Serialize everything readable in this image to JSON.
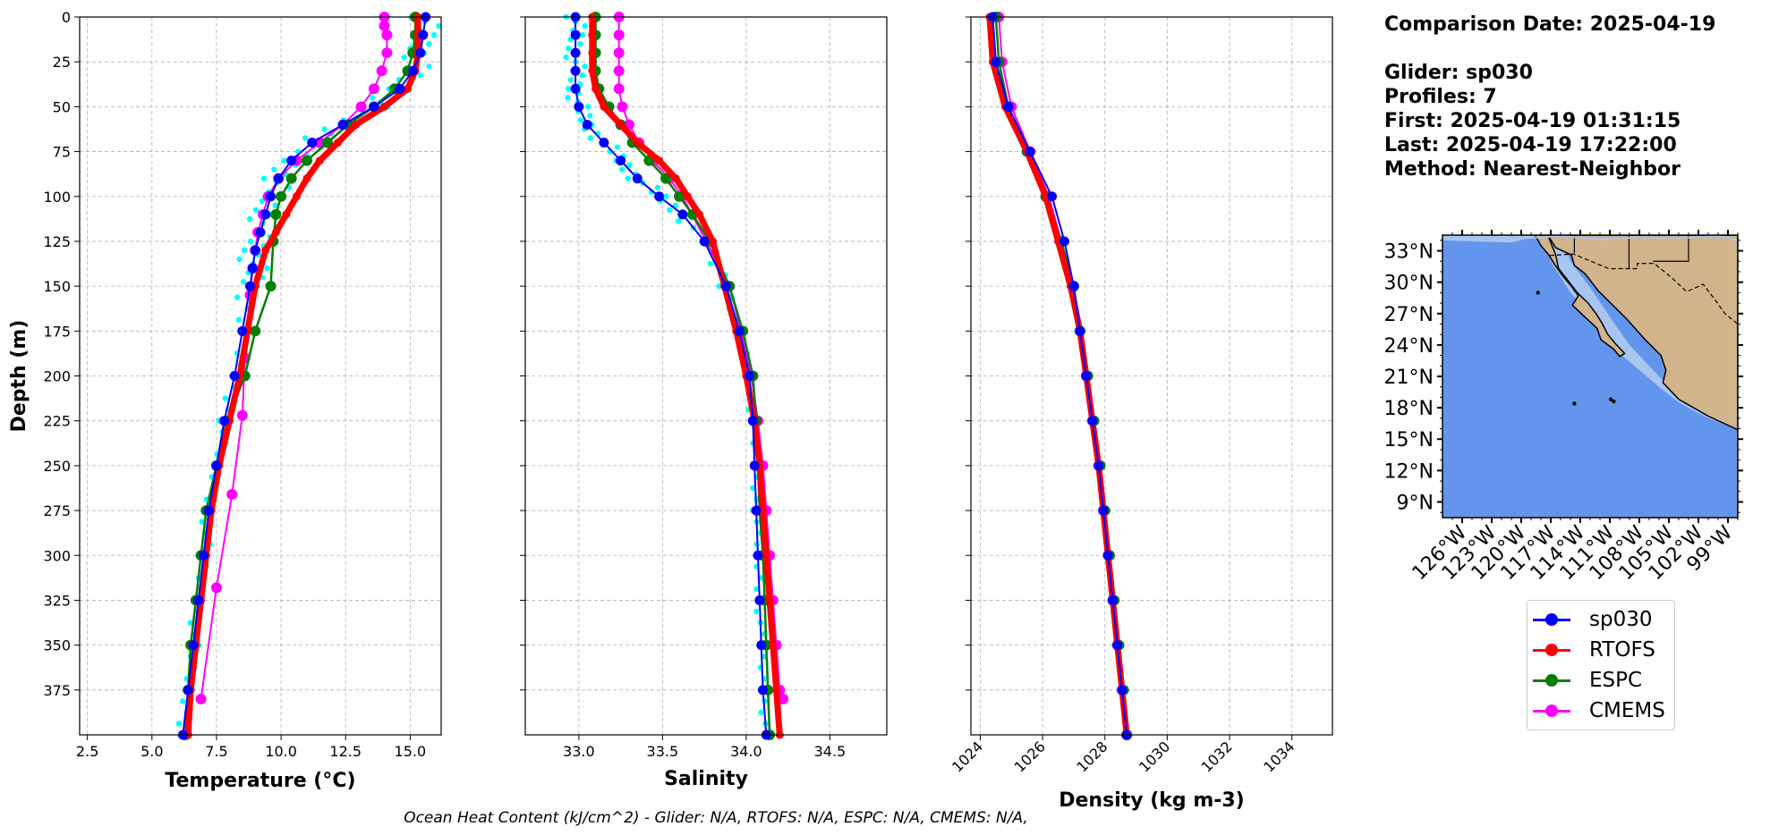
{
  "info": {
    "comparison_date": "Comparison Date: 2025-04-19",
    "glider": "Glider: sp030",
    "profiles": "Profiles: 7",
    "first": "First: 2025-04-19 01:31:15",
    "last": "Last: 2025-04-19 17:22:00",
    "method": "Method: Nearest-Neighbor"
  },
  "footer": "Ocean Heat Content (kJ/cm^2) - Glider: N/A,  RTOFS: N/A,  ESPC: N/A,  CMEMS: N/A,",
  "colors": {
    "sp030": "#0000ff",
    "RTOFS": "#ff0000",
    "ESPC": "#008000",
    "CMEMS": "#ff00ff",
    "raw": "#00ffff",
    "ocean": "#6495ed",
    "shelf": "#a6c6f0",
    "land": "#d2b48c"
  },
  "legend": [
    "sp030",
    "RTOFS",
    "ESPC",
    "CMEMS"
  ],
  "chart_data": [
    {
      "type": "line",
      "xlabel": "Temperature (°C)",
      "ylabel": "Depth (m)",
      "xlim": [
        2.2,
        16.2
      ],
      "ylim": [
        400,
        0
      ],
      "xticks": [
        "2.5",
        "5.0",
        "7.5",
        "10.0",
        "12.5",
        "15.0"
      ],
      "yticks": [
        "0",
        "25",
        "50",
        "75",
        "100",
        "125",
        "150",
        "175",
        "200",
        "225",
        "250",
        "275",
        "300",
        "325",
        "350",
        "375"
      ],
      "series": [
        {
          "name": "sp030",
          "depth": [
            0,
            10,
            20,
            30,
            40,
            50,
            60,
            70,
            80,
            90,
            100,
            110,
            120,
            130,
            140,
            150,
            175,
            200,
            225,
            250,
            275,
            300,
            325,
            350,
            375,
            400
          ],
          "values": [
            15.6,
            15.5,
            15.4,
            15.1,
            14.6,
            13.6,
            12.4,
            11.2,
            10.4,
            9.9,
            9.6,
            9.4,
            9.2,
            9.0,
            8.9,
            8.8,
            8.5,
            8.2,
            7.8,
            7.5,
            7.2,
            7.0,
            6.8,
            6.6,
            6.4,
            6.2
          ]
        },
        {
          "name": "RTOFS",
          "depth": [
            0,
            10,
            20,
            30,
            40,
            50,
            60,
            70,
            80,
            90,
            100,
            110,
            120,
            130,
            150,
            175,
            200,
            225,
            250,
            275,
            300,
            325,
            350,
            375,
            400
          ],
          "values": [
            15.3,
            15.3,
            15.3,
            15.2,
            14.9,
            14.0,
            12.9,
            12.2,
            11.5,
            11.0,
            10.6,
            10.2,
            9.8,
            9.4,
            9.0,
            8.7,
            8.4,
            8.0,
            7.6,
            7.3,
            7.1,
            6.9,
            6.7,
            6.5,
            6.4
          ]
        },
        {
          "name": "ESPC",
          "depth": [
            0,
            10,
            20,
            30,
            40,
            50,
            60,
            70,
            80,
            90,
            100,
            110,
            125,
            150,
            175,
            200,
            225,
            250,
            275,
            300,
            325,
            350,
            375,
            400
          ],
          "values": [
            15.2,
            15.2,
            15.1,
            14.9,
            14.4,
            13.6,
            12.6,
            11.8,
            11.0,
            10.4,
            10.0,
            9.8,
            9.7,
            9.6,
            9.0,
            8.6,
            7.9,
            7.5,
            7.1,
            6.9,
            6.7,
            6.5,
            6.4,
            6.3
          ]
        },
        {
          "name": "CMEMS",
          "depth": [
            0,
            5,
            10,
            20,
            30,
            40,
            50,
            60,
            70,
            80,
            90,
            100,
            110,
            120,
            130,
            140,
            155,
            190,
            222,
            266,
            318,
            380
          ],
          "values": [
            14.0,
            14.0,
            14.1,
            14.1,
            13.9,
            13.6,
            13.1,
            12.4,
            11.5,
            10.6,
            9.9,
            9.5,
            9.3,
            9.1,
            9.0,
            8.9,
            8.8,
            8.6,
            8.5,
            8.1,
            7.5,
            6.9
          ]
        }
      ]
    },
    {
      "type": "line",
      "xlabel": "Salinity",
      "ylim": [
        400,
        0
      ],
      "xlim": [
        32.68,
        34.84
      ],
      "xticks": [
        "33.0",
        "33.5",
        "34.0",
        "34.5"
      ],
      "series": [
        {
          "name": "sp030",
          "depth": [
            0,
            10,
            20,
            30,
            40,
            50,
            60,
            70,
            80,
            90,
            100,
            110,
            125,
            150,
            175,
            200,
            225,
            250,
            275,
            300,
            325,
            350,
            375,
            400
          ],
          "values": [
            32.98,
            32.98,
            32.98,
            32.98,
            32.98,
            33.0,
            33.05,
            33.15,
            33.25,
            33.35,
            33.48,
            33.62,
            33.75,
            33.88,
            33.96,
            34.02,
            34.04,
            34.05,
            34.06,
            34.07,
            34.08,
            34.09,
            34.1,
            34.12
          ]
        },
        {
          "name": "RTOFS",
          "depth": [
            0,
            10,
            20,
            30,
            40,
            50,
            60,
            70,
            80,
            90,
            100,
            110,
            125,
            150,
            175,
            200,
            225,
            250,
            275,
            300,
            325,
            350,
            375,
            400
          ],
          "values": [
            33.08,
            33.08,
            33.08,
            33.08,
            33.1,
            33.15,
            33.25,
            33.35,
            33.48,
            33.58,
            33.65,
            33.72,
            33.8,
            33.87,
            33.94,
            34.0,
            34.05,
            34.08,
            34.1,
            34.12,
            34.14,
            34.16,
            34.18,
            34.2
          ]
        },
        {
          "name": "ESPC",
          "depth": [
            0,
            10,
            20,
            30,
            40,
            50,
            60,
            70,
            80,
            90,
            100,
            110,
            125,
            150,
            175,
            200,
            225,
            250,
            275,
            300,
            325,
            350,
            375,
            400
          ],
          "values": [
            33.1,
            33.1,
            33.1,
            33.1,
            33.12,
            33.18,
            33.25,
            33.32,
            33.42,
            33.52,
            33.6,
            33.68,
            33.78,
            33.9,
            33.98,
            34.04,
            34.06,
            34.07,
            34.08,
            34.1,
            34.11,
            34.12,
            34.13,
            34.14
          ]
        },
        {
          "name": "CMEMS",
          "depth": [
            0,
            10,
            20,
            30,
            40,
            50,
            60,
            70,
            80,
            90,
            100,
            125,
            150,
            175,
            200,
            225,
            250,
            275,
            300,
            325,
            350,
            375,
            380
          ],
          "values": [
            33.24,
            33.24,
            33.24,
            33.24,
            33.24,
            33.26,
            33.3,
            33.36,
            33.44,
            33.54,
            33.62,
            33.76,
            33.9,
            33.97,
            34.03,
            34.07,
            34.1,
            34.12,
            34.14,
            34.16,
            34.18,
            34.2,
            34.22
          ]
        }
      ]
    },
    {
      "type": "line",
      "xlabel": "Density (kg m-3)",
      "ylim": [
        400,
        0
      ],
      "xlim": [
        1023.7,
        1035.3
      ],
      "xticks": [
        "1024",
        "1026",
        "1028",
        "1030",
        "1032",
        "1034"
      ],
      "series": [
        {
          "name": "sp030",
          "depth": [
            0,
            25,
            50,
            75,
            100,
            125,
            150,
            175,
            200,
            225,
            250,
            275,
            300,
            325,
            350,
            375,
            400
          ],
          "values": [
            1024.4,
            1024.5,
            1024.9,
            1025.6,
            1026.3,
            1026.7,
            1027.0,
            1027.2,
            1027.4,
            1027.6,
            1027.8,
            1027.95,
            1028.1,
            1028.25,
            1028.4,
            1028.55,
            1028.7
          ]
        },
        {
          "name": "RTOFS",
          "depth": [
            0,
            25,
            50,
            75,
            100,
            125,
            150,
            175,
            200,
            225,
            250,
            275,
            300,
            325,
            350,
            375,
            400
          ],
          "values": [
            1024.3,
            1024.4,
            1024.8,
            1025.5,
            1026.1,
            1026.5,
            1026.9,
            1027.2,
            1027.4,
            1027.6,
            1027.8,
            1027.95,
            1028.1,
            1028.25,
            1028.4,
            1028.55,
            1028.7
          ]
        },
        {
          "name": "ESPC",
          "depth": [
            0,
            25,
            50,
            75,
            100,
            125,
            150,
            175,
            200,
            225,
            250,
            275,
            300,
            325,
            350,
            375,
            400
          ],
          "values": [
            1024.5,
            1024.6,
            1024.9,
            1025.5,
            1026.1,
            1026.6,
            1027.0,
            1027.2,
            1027.45,
            1027.65,
            1027.85,
            1028.0,
            1028.15,
            1028.3,
            1028.45,
            1028.6,
            1028.7
          ]
        },
        {
          "name": "CMEMS",
          "depth": [
            0,
            25,
            50,
            75,
            100,
            125,
            150,
            175,
            200,
            225,
            250,
            275,
            300,
            325,
            350,
            375,
            400
          ],
          "values": [
            1024.6,
            1024.7,
            1025.0,
            1025.6,
            1026.2,
            1026.6,
            1027.0,
            1027.2,
            1027.4,
            1027.6,
            1027.8,
            1027.95,
            1028.1,
            1028.25,
            1028.4,
            1028.55,
            1028.7
          ]
        }
      ]
    },
    {
      "type": "map",
      "lat_ticks": [
        "33°N",
        "30°N",
        "27°N",
        "24°N",
        "21°N",
        "18°N",
        "15°N",
        "12°N",
        "9°N"
      ],
      "lon_ticks": [
        "126°W",
        "123°W",
        "120°W",
        "117°W",
        "114°W",
        "111°W",
        "108°W",
        "105°W",
        "102°W",
        "99°W"
      ]
    }
  ]
}
